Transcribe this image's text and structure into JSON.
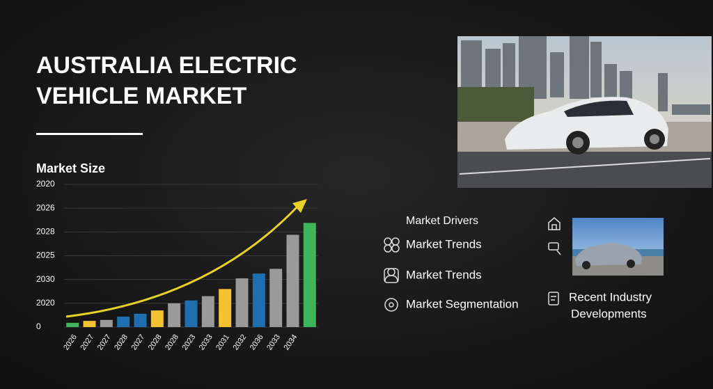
{
  "title": {
    "lines": [
      "AUSTRALIA ELECTRIC",
      "VEHICLE MARKET"
    ]
  },
  "chart_data": {
    "type": "bar",
    "title": "Market Size",
    "categories": [
      "2026",
      "2027",
      "2027",
      "2028",
      "2027",
      "2028",
      "2028",
      "2023",
      "2033",
      "2031",
      "2032",
      "2036",
      "2033",
      "2034",
      null
    ],
    "values": [
      0.18,
      0.26,
      0.3,
      0.44,
      0.56,
      0.7,
      1.0,
      1.12,
      1.3,
      1.6,
      2.05,
      2.25,
      2.45,
      3.88,
      4.38
    ],
    "colors": [
      "#3fb55a",
      "#f2c230",
      "#9a9a9a",
      "#1f6fb0",
      "#1f6fb0",
      "#f2c230",
      "#9a9a9a",
      "#1f6fb0",
      "#9a9a9a",
      "#f2c230",
      "#9a9a9a",
      "#1f6fb0",
      "#9a9a9a",
      "#9a9a9a",
      "#3fb55a"
    ],
    "ylim": [
      0,
      6
    ],
    "yticks": [
      0,
      {
        "value": 1,
        "label": "2020"
      },
      {
        "value": 2,
        "label": "2030"
      },
      {
        "value": 3,
        "label": "2025"
      },
      {
        "value": 4,
        "label": "2028"
      },
      {
        "value": 5,
        "label": "2026"
      },
      {
        "value": 6,
        "label": "2020"
      }
    ],
    "grid": true
  },
  "sections": {
    "heading": "Market Drivers",
    "items": [
      "Market Trends",
      "Market Trends",
      "Market Segmentation"
    ]
  },
  "developments": {
    "lines": [
      "Recent Industry",
      "Developments"
    ]
  }
}
